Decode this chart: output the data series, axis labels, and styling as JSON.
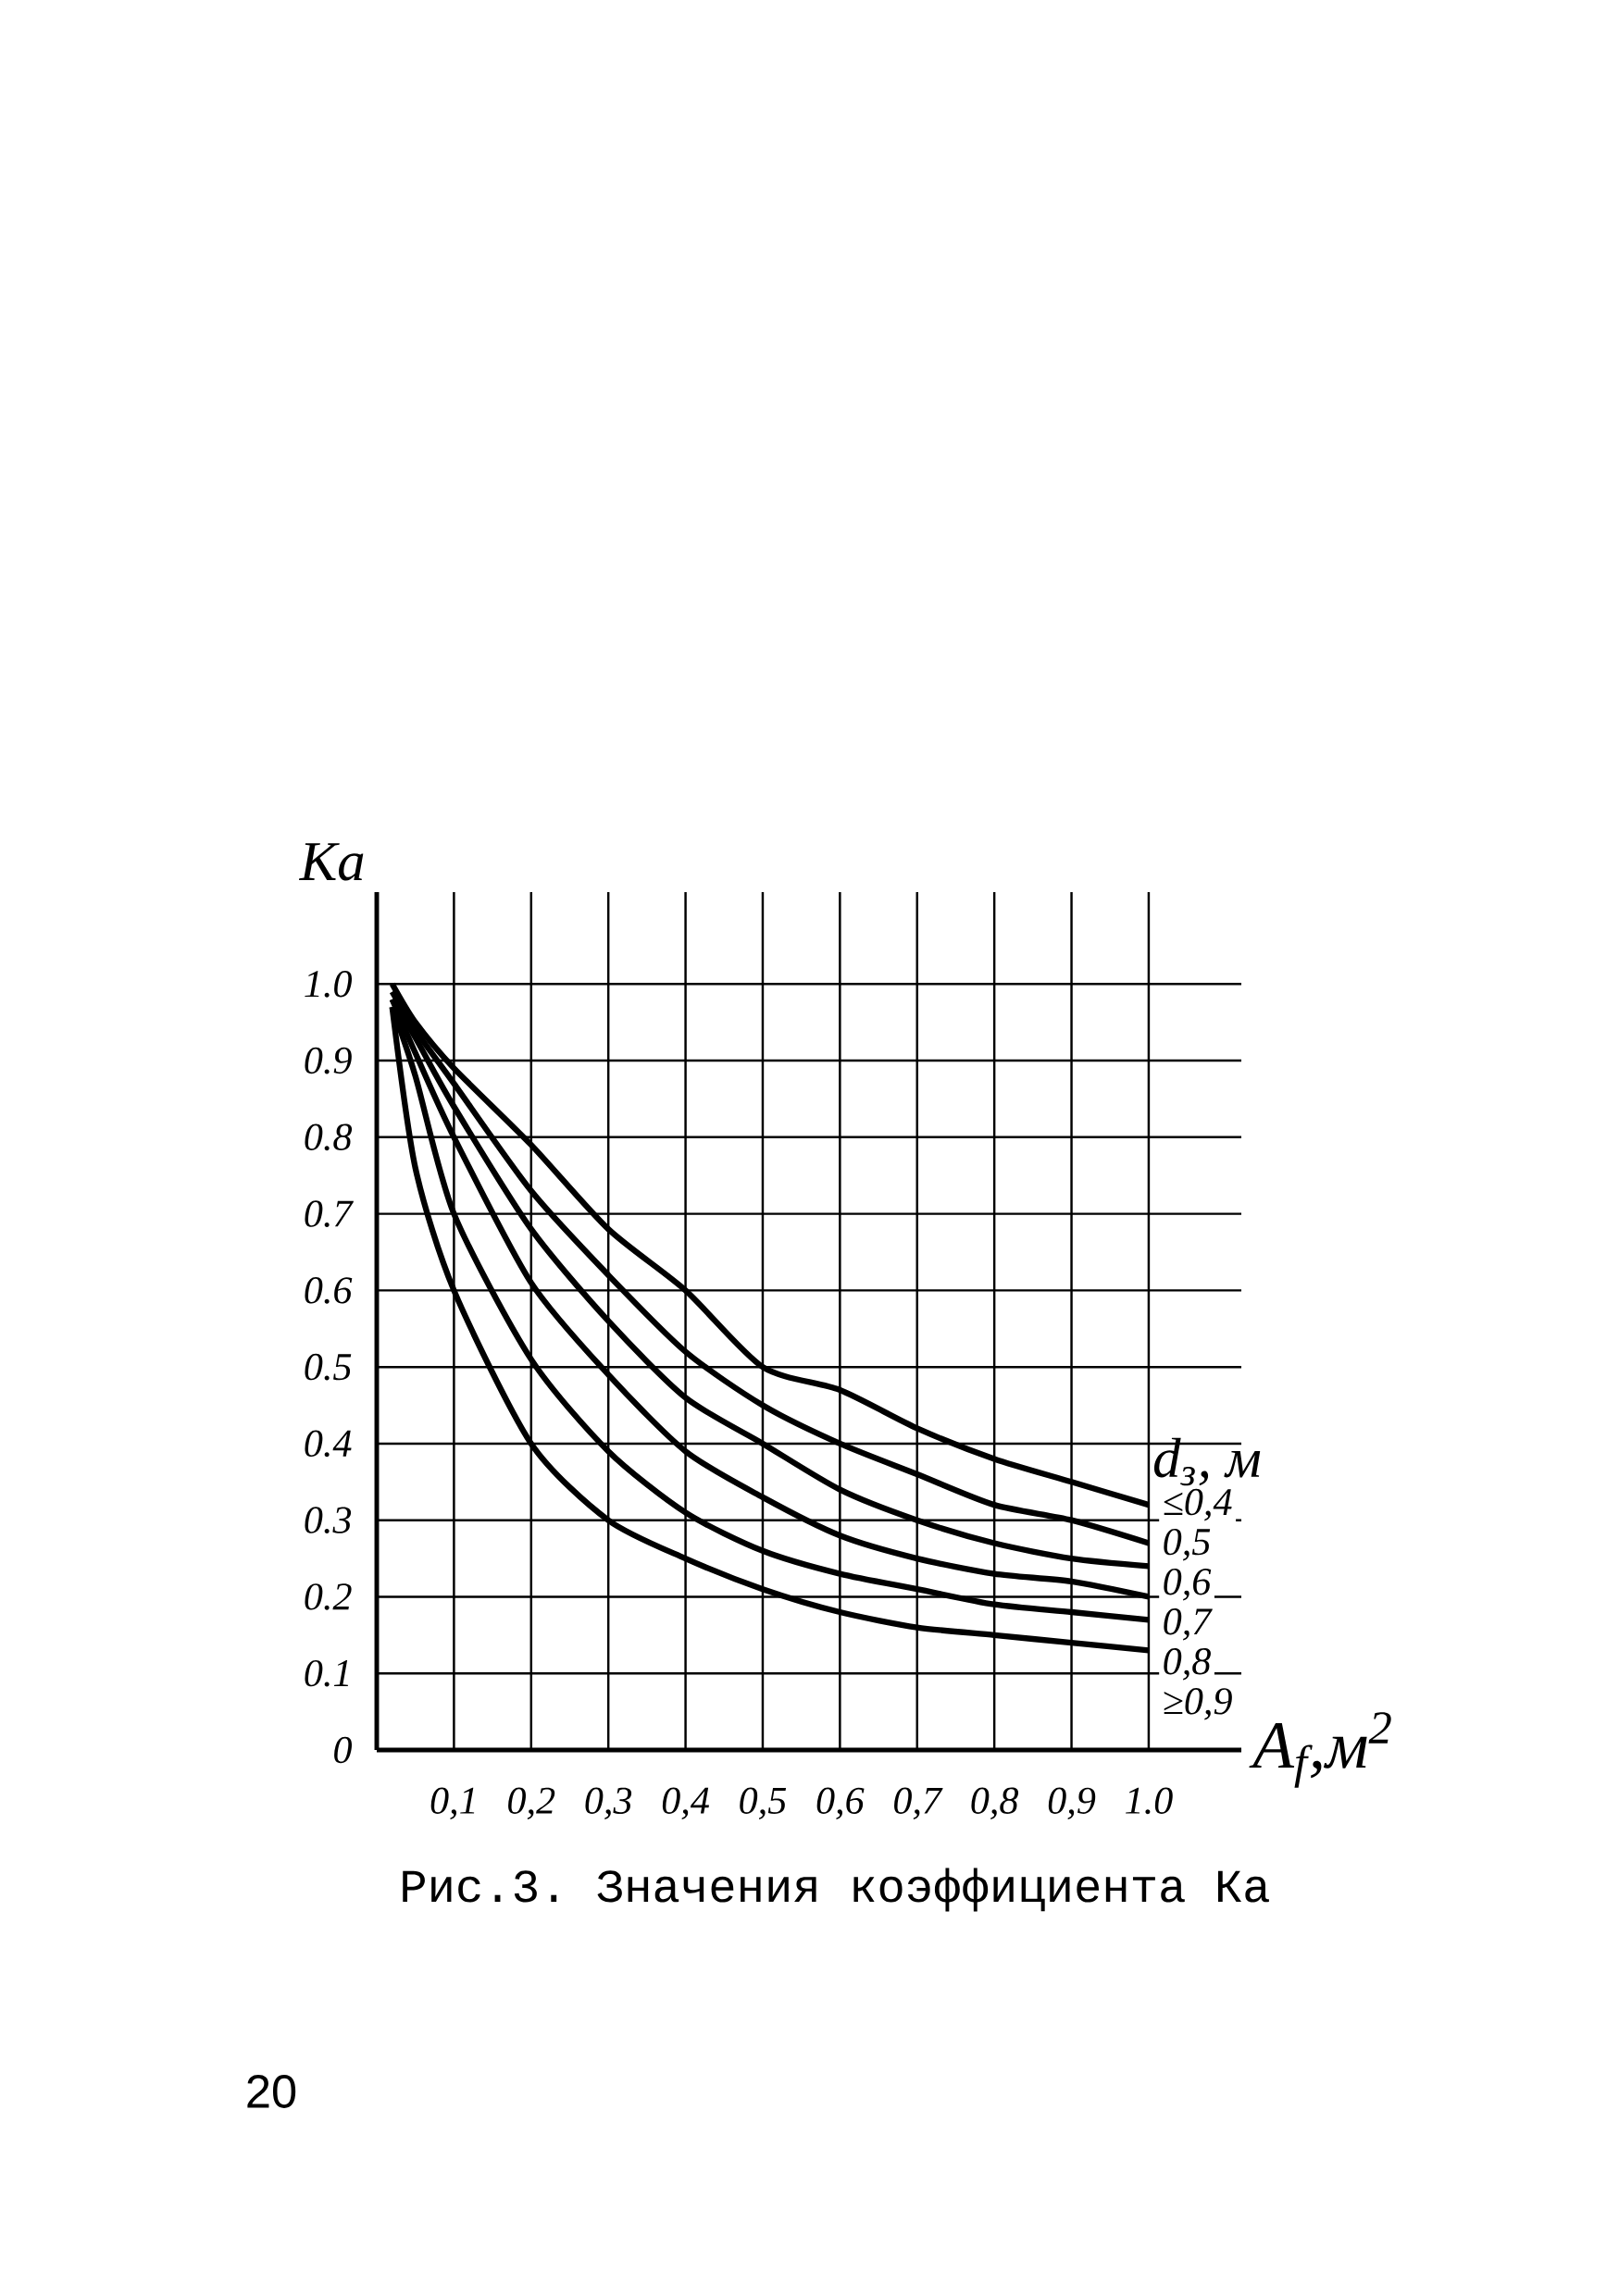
{
  "chart_data": {
    "type": "line",
    "ylabel": "Ka",
    "xlabel": "A$_{f}$,м$^{2}$",
    "legend_title": "d$_{з}$, м",
    "annotations": [
      "Рис.3. Значения коэффициента Ка",
      "20"
    ],
    "x": [
      0.02,
      0.05,
      0.1,
      0.2,
      0.3,
      0.4,
      0.5,
      0.6,
      0.7,
      0.8,
      0.9,
      1.0
    ],
    "series": [
      {
        "name": "≤0,4",
        "color": "#000000",
        "values": [
          1.0,
          0.95,
          0.89,
          0.79,
          0.68,
          0.6,
          0.5,
          0.47,
          0.42,
          0.38,
          0.35,
          0.32
        ]
      },
      {
        "name": "0,5",
        "color": "#000000",
        "values": [
          0.99,
          0.94,
          0.87,
          0.73,
          0.62,
          0.52,
          0.45,
          0.4,
          0.36,
          0.32,
          0.3,
          0.27
        ]
      },
      {
        "name": "0,6",
        "color": "#000000",
        "values": [
          0.98,
          0.93,
          0.84,
          0.68,
          0.56,
          0.46,
          0.4,
          0.34,
          0.3,
          0.27,
          0.25,
          0.24
        ]
      },
      {
        "name": "0,7",
        "color": "#000000",
        "values": [
          0.98,
          0.91,
          0.8,
          0.61,
          0.49,
          0.39,
          0.33,
          0.28,
          0.25,
          0.23,
          0.22,
          0.2
        ]
      },
      {
        "name": "0,8",
        "color": "#000000",
        "values": [
          0.97,
          0.88,
          0.7,
          0.51,
          0.39,
          0.31,
          0.26,
          0.23,
          0.21,
          0.19,
          0.18,
          0.17
        ]
      },
      {
        "name": "≥0,9",
        "color": "#000000",
        "values": [
          0.97,
          0.76,
          0.6,
          0.4,
          0.3,
          0.25,
          0.21,
          0.18,
          0.16,
          0.15,
          0.14,
          0.13
        ]
      }
    ],
    "xlim": [
      0,
      1.12
    ],
    "ylim": [
      0,
      1.12
    ],
    "xticks": [
      {
        "value": 0.1,
        "label": "0,1"
      },
      {
        "value": 0.2,
        "label": "0,2"
      },
      {
        "value": 0.3,
        "label": "0,3"
      },
      {
        "value": 0.4,
        "label": "0,4"
      },
      {
        "value": 0.5,
        "label": "0,5"
      },
      {
        "value": 0.6,
        "label": "0,6"
      },
      {
        "value": 0.7,
        "label": "0,7"
      },
      {
        "value": 0.8,
        "label": "0,8"
      },
      {
        "value": 0.9,
        "label": "0,9"
      },
      {
        "value": 1.0,
        "label": "1.0"
      }
    ],
    "yticks": [
      0,
      0.1,
      0.2,
      0.3,
      0.4,
      0.5,
      0.6,
      0.7,
      0.8,
      0.9,
      {
        "value": 1.0,
        "label": "1.0"
      }
    ],
    "grid": true,
    "line_style": "solid"
  }
}
